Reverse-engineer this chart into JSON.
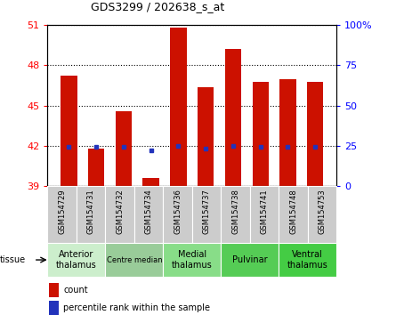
{
  "title": "GDS3299 / 202638_s_at",
  "samples": [
    "GSM154729",
    "GSM154731",
    "GSM154732",
    "GSM154734",
    "GSM154736",
    "GSM154737",
    "GSM154738",
    "GSM154741",
    "GSM154748",
    "GSM154753"
  ],
  "count_values": [
    47.2,
    41.8,
    44.6,
    39.6,
    50.8,
    46.4,
    49.2,
    46.8,
    47.0,
    46.8
  ],
  "count_bottom": [
    39,
    39,
    39,
    39,
    39,
    39,
    39,
    39,
    39,
    39
  ],
  "percentile_left_axis": [
    41.9,
    41.9,
    41.9,
    41.65,
    42.0,
    41.8,
    42.0,
    41.9,
    41.9,
    41.9
  ],
  "ylim_left": [
    39,
    51
  ],
  "ylim_right": [
    0,
    100
  ],
  "yticks_left": [
    39,
    42,
    45,
    48,
    51
  ],
  "yticks_right": [
    0,
    25,
    50,
    75,
    100
  ],
  "ytick_labels_right": [
    "0",
    "25",
    "50",
    "75",
    "100%"
  ],
  "bar_color": "#cc1100",
  "dot_color": "#2233bb",
  "tissue_groups": [
    {
      "label": "Anterior\nthalamus",
      "samples": [
        "GSM154729",
        "GSM154731"
      ],
      "color": "#cceecc"
    },
    {
      "label": "Centre median",
      "samples": [
        "GSM154732",
        "GSM154734"
      ],
      "color": "#99cc99"
    },
    {
      "label": "Medial\nthalamus",
      "samples": [
        "GSM154736",
        "GSM154737"
      ],
      "color": "#88dd88"
    },
    {
      "label": "Pulvinar",
      "samples": [
        "GSM154738",
        "GSM154741"
      ],
      "color": "#55cc55"
    },
    {
      "label": "Ventral\nthalamus",
      "samples": [
        "GSM154748",
        "GSM154753"
      ],
      "color": "#44cc44"
    }
  ],
  "tissue_label": "tissue",
  "legend_count_label": "count",
  "legend_pct_label": "percentile rank within the sample"
}
